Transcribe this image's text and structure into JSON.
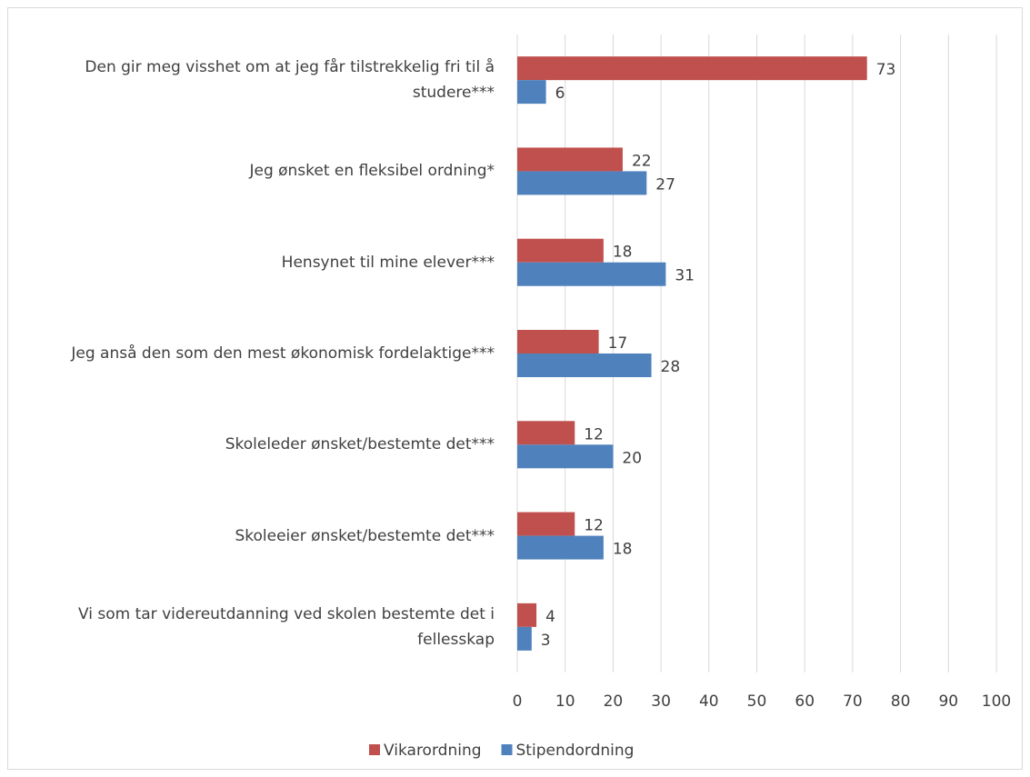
{
  "chart_data": {
    "type": "barh",
    "categories": [
      "Den gir meg visshet om at jeg får tilstrekkelig fri til å studere***",
      "Jeg ønsket en fleksibel ordning*",
      "Hensynet til mine elever***",
      "Jeg anså den som den mest økonomisk fordelaktige***",
      "Skoleleder ønsket/bestemte det***",
      "Skoleeier ønsket/bestemte det***",
      "Vi som tar videreutdanning ved skolen bestemte det i fellesskap"
    ],
    "series": [
      {
        "name": "Vikarordning",
        "color": "#c0504d",
        "values": [
          73,
          22,
          18,
          17,
          12,
          12,
          4
        ]
      },
      {
        "name": "Stipendordning",
        "color": "#4f81bd",
        "values": [
          6,
          27,
          31,
          28,
          20,
          18,
          3
        ]
      }
    ],
    "xlim": [
      0,
      100
    ],
    "xticks": [
      0,
      10,
      20,
      30,
      40,
      50,
      60,
      70,
      80,
      90,
      100
    ],
    "grid": true,
    "legend": "bottom"
  }
}
